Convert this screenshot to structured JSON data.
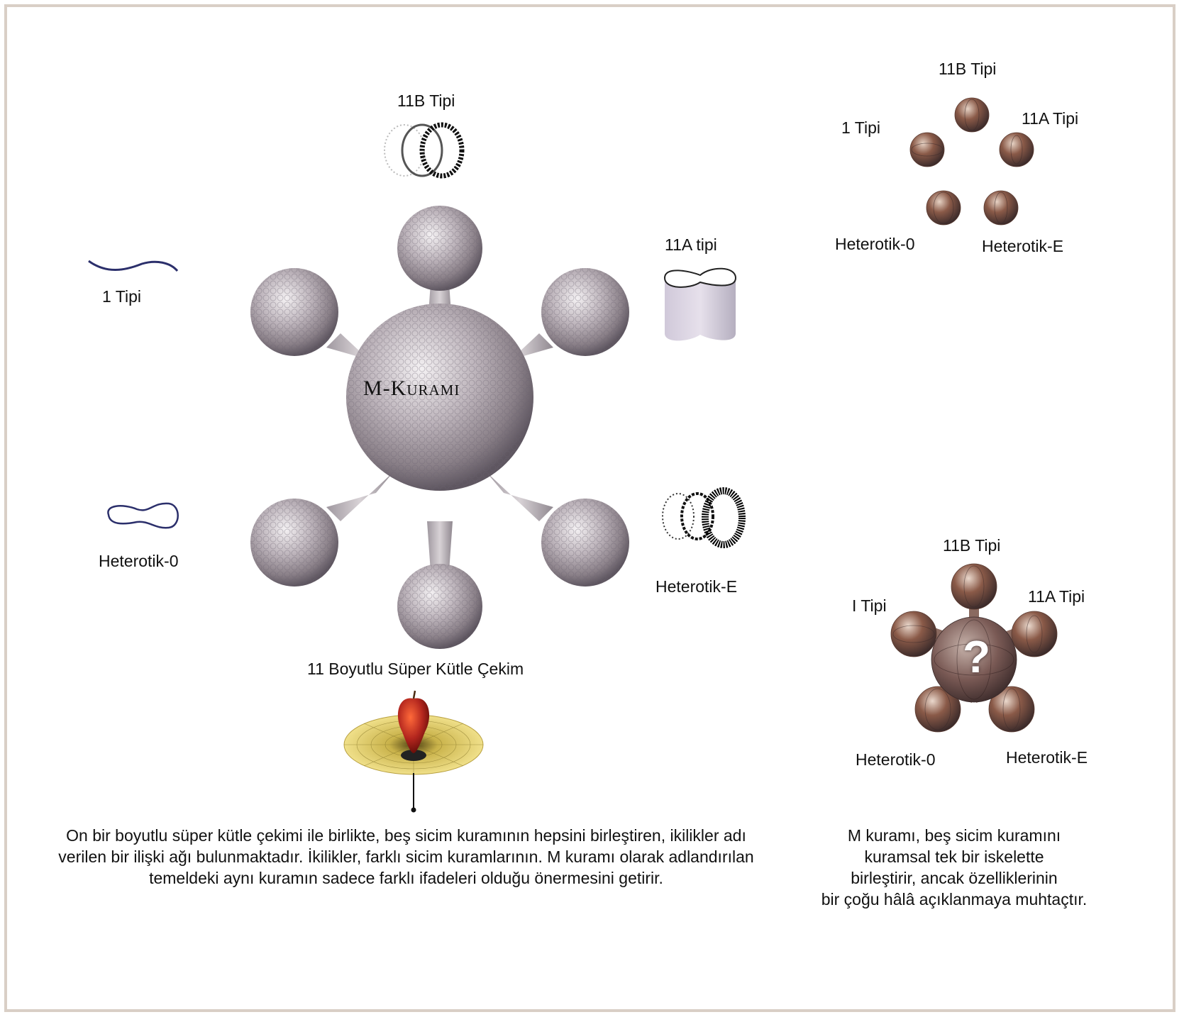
{
  "main_diagram": {
    "center_label": "M-Kuramı",
    "labels": {
      "type_11b": "11B Tipi",
      "type_11a": "11A tipi",
      "type_1": "1 Tipi",
      "heterotic_0": "Heterotik-0",
      "heterotic_e": "Heterotik-E",
      "supergravity": "11 Boyutlu Süper Kütle Çekim"
    },
    "caption_lines": [
      "On bir boyutlu süper kütle çekimi ile birlikte, beş sicim kuramının hepsini birleştiren, ikilikler adı",
      "verilen bir ilişki ağı bulunmaktadır. İkilikler, farklı sicim kuramlarının. M kuramı olarak adlandırılan",
      "temeldeki aynı kuramın sadece farklı ifadeleri olduğu önermesini getirir."
    ]
  },
  "top_right_diagram": {
    "labels": {
      "type_11b": "11B Tipi",
      "type_1": "1 Tipi",
      "type_11a": "11A Tipi",
      "heterotic_0": "Heterotik-0",
      "heterotic_e": "Heterotik-E"
    }
  },
  "bottom_right_diagram": {
    "center_symbol": "?",
    "labels": {
      "type_11b": "11B Tipi",
      "type_1": "I Tipi",
      "type_11a": "11A Tipi",
      "heterotic_0": "Heterotik-0",
      "heterotic_e": "Heterotik-E"
    },
    "caption_lines": [
      "M kuramı, beş sicim kuramını",
      "kuramsal tek bir iskelette",
      "birleştirir, ancak özelliklerinin",
      "bir çoğu hâlâ açıklanmaya muhtaçtır."
    ]
  },
  "colors": {
    "frame": "#d9cfc6",
    "string_line": "#2b2f6b",
    "sphere": "#8a8088",
    "apple": "#b3261e",
    "grid": "#e8d27a"
  }
}
